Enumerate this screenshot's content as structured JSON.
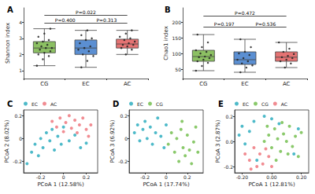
{
  "chart_data": [
    {
      "type": "boxplot",
      "title": "A",
      "y_label": "Shannon index",
      "categories": [
        "CG",
        "EC",
        "AC"
      ],
      "colors": [
        "#8cc063",
        "#5b8fd2",
        "#e57373"
      ],
      "values": [
        [
          1.3,
          2.1,
          2.4,
          2.8,
          3.6
        ],
        [
          1.2,
          2.0,
          2.4,
          2.9,
          3.5
        ],
        [
          2.0,
          2.4,
          2.65,
          2.95,
          3.5
        ]
      ],
      "points": [
        [
          1.3,
          1.7,
          1.9,
          2.0,
          2.1,
          2.2,
          2.3,
          2.4,
          2.4,
          2.5,
          2.6,
          2.7,
          2.8,
          2.9,
          3.1,
          3.3,
          3.6
        ],
        [
          1.2,
          1.6,
          1.9,
          2.0,
          2.2,
          2.3,
          2.4,
          2.5,
          2.7,
          2.9,
          3.0,
          3.2,
          3.5
        ],
        [
          2.0,
          2.3,
          2.4,
          2.5,
          2.6,
          2.6,
          2.7,
          2.8,
          2.9,
          3.0,
          3.1,
          3.3,
          3.5
        ]
      ],
      "annotations": [
        {
          "text": "P=0.022",
          "from": "CG",
          "to": "AC",
          "y": 4.45
        },
        {
          "text": "P=0.400",
          "from": "CG",
          "to": "EC",
          "y": 3.95
        },
        {
          "text": "P=0.313",
          "from": "EC",
          "to": "AC",
          "y": 3.95
        }
      ],
      "ylim": [
        0.5,
        4.9
      ],
      "yticks": [
        1,
        2,
        3,
        4
      ],
      "grid": false
    },
    {
      "type": "boxplot",
      "title": "B",
      "y_label": "Chao1 index",
      "categories": [
        "CG",
        "EC",
        "AC"
      ],
      "colors": [
        "#8cc063",
        "#5b8fd2",
        "#e57373"
      ],
      "values": [
        [
          45,
          75,
          90,
          110,
          160
        ],
        [
          40,
          65,
          80,
          105,
          145
        ],
        [
          55,
          75,
          88,
          105,
          135
        ]
      ],
      "points": [
        [
          45,
          60,
          70,
          75,
          80,
          85,
          88,
          90,
          95,
          100,
          105,
          110,
          120,
          135,
          160
        ],
        [
          40,
          55,
          62,
          68,
          75,
          80,
          85,
          95,
          100,
          105,
          120,
          145
        ],
        [
          55,
          68,
          75,
          80,
          85,
          88,
          92,
          98,
          105,
          115,
          135
        ]
      ],
      "annotations": [
        {
          "text": "P=0.472",
          "from": "CG",
          "to": "AC",
          "y": 220
        },
        {
          "text": "P=0.197",
          "from": "CG",
          "to": "EC",
          "y": 185
        },
        {
          "text": "P=0.536",
          "from": "EC",
          "to": "AC",
          "y": 185
        }
      ],
      "ylim": [
        20,
        245
      ],
      "yticks": [
        50,
        100,
        150,
        200
      ],
      "grid": false
    },
    {
      "type": "scatter",
      "title": "C",
      "x_label": "PCoA 1 (12.58%)",
      "y_label": "PCoA 2 (8.02%)",
      "legend": "top-left",
      "marker": "circle",
      "grid": false,
      "xlim": [
        -0.35,
        0.3
      ],
      "xticks": [
        -0.2,
        0,
        0.2
      ],
      "ylim": [
        -0.3,
        0.25
      ],
      "yticks": [
        -0.2,
        0,
        0.2
      ],
      "series": [
        {
          "name": "EC",
          "color": "#3bb3c3",
          "values": [
            [
              -0.32,
              -0.22
            ],
            [
              -0.28,
              -0.12
            ],
            [
              -0.25,
              -0.05
            ],
            [
              -0.22,
              -0.15
            ],
            [
              -0.2,
              0.0
            ],
            [
              -0.18,
              -0.08
            ],
            [
              -0.15,
              0.05
            ],
            [
              -0.12,
              -0.02
            ],
            [
              -0.1,
              0.08
            ],
            [
              -0.08,
              -0.1
            ],
            [
              -0.05,
              0.02
            ],
            [
              -0.02,
              -0.05
            ],
            [
              0.0,
              0.1
            ],
            [
              0.05,
              -0.02
            ],
            [
              0.1,
              0.03
            ],
            [
              0.15,
              -0.08
            ],
            [
              0.2,
              -0.04
            ]
          ]
        },
        {
          "name": "AC",
          "color": "#f07f86",
          "values": [
            [
              -0.1,
              0.15
            ],
            [
              -0.06,
              0.1
            ],
            [
              -0.03,
              0.18
            ],
            [
              0.0,
              0.06
            ],
            [
              0.02,
              0.14
            ],
            [
              0.05,
              0.2
            ],
            [
              0.07,
              0.09
            ],
            [
              0.1,
              0.16
            ],
            [
              0.12,
              0.05
            ],
            [
              0.14,
              0.12
            ],
            [
              0.17,
              0.18
            ],
            [
              0.2,
              0.08
            ],
            [
              0.22,
              0.02
            ],
            [
              0.24,
              0.12
            ]
          ]
        }
      ]
    },
    {
      "type": "scatter",
      "title": "D",
      "x_label": "PCoA 1 (17.74%)",
      "y_label": "PCoA 3 (6.92%)",
      "legend": "top-left",
      "marker": "circle",
      "grid": false,
      "xlim": [
        -0.35,
        0.35
      ],
      "xticks": [
        -0.2,
        0,
        0.2
      ],
      "ylim": [
        -0.3,
        0.25
      ],
      "yticks": [
        -0.2,
        0,
        0.2
      ],
      "series": [
        {
          "name": "EC",
          "color": "#3bb3c3",
          "values": [
            [
              -0.3,
              0.05
            ],
            [
              -0.27,
              0.12
            ],
            [
              -0.25,
              -0.02
            ],
            [
              -0.22,
              0.08
            ],
            [
              -0.2,
              0.15
            ],
            [
              -0.18,
              0.0
            ],
            [
              -0.15,
              0.1
            ],
            [
              -0.13,
              -0.05
            ],
            [
              -0.1,
              0.05
            ],
            [
              -0.08,
              0.18
            ],
            [
              -0.05,
              0.02
            ],
            [
              -0.02,
              -0.08
            ],
            [
              0.0,
              0.12
            ]
          ]
        },
        {
          "name": "CG",
          "color": "#7dc35b",
          "values": [
            [
              0.02,
              -0.05
            ],
            [
              0.05,
              0.05
            ],
            [
              0.08,
              -0.12
            ],
            [
              0.1,
              0.0
            ],
            [
              0.12,
              -0.2
            ],
            [
              0.14,
              0.08
            ],
            [
              0.16,
              -0.08
            ],
            [
              0.18,
              -0.15
            ],
            [
              0.2,
              0.03
            ],
            [
              0.22,
              -0.1
            ],
            [
              0.24,
              -0.22
            ],
            [
              0.26,
              -0.03
            ],
            [
              0.28,
              0.1
            ],
            [
              0.3,
              -0.12
            ],
            [
              0.15,
              0.15
            ]
          ]
        }
      ]
    },
    {
      "type": "scatter",
      "title": "E",
      "x_label": "PCoA 1 (12.81%)",
      "y_label": "PCoA 3 (2.87%)",
      "legend": "top-left",
      "marker": "circle",
      "grid": false,
      "xlim": [
        -0.25,
        0.25
      ],
      "xticks": [
        {
          "value": -0.2,
          "label": "-0.20"
        },
        {
          "value": 0,
          "label": "0.00"
        },
        {
          "value": 0.2,
          "label": "0.20"
        }
      ],
      "ylim": [
        -0.25,
        0.25
      ],
      "yticks": [
        -0.2,
        {
          "value": 0,
          "label": "0.0"
        },
        0.2
      ],
      "series": [
        {
          "name": "EC",
          "color": "#3bb3c3",
          "values": [
            [
              -0.22,
              0.05
            ],
            [
              -0.2,
              0.12
            ],
            [
              -0.18,
              -0.02
            ],
            [
              -0.15,
              0.08
            ],
            [
              -0.12,
              0.16
            ],
            [
              -0.05,
              0.2
            ],
            [
              0.0,
              0.18
            ],
            [
              0.05,
              0.14
            ],
            [
              0.15,
              -0.1
            ],
            [
              0.18,
              0.1
            ],
            [
              -0.1,
              -0.15
            ]
          ]
        },
        {
          "name": "CG",
          "color": "#7dc35b",
          "values": [
            [
              -0.05,
              0.0
            ],
            [
              -0.02,
              0.05
            ],
            [
              0.0,
              -0.05
            ],
            [
              0.02,
              0.1
            ],
            [
              0.04,
              0.02
            ],
            [
              0.06,
              -0.08
            ],
            [
              0.08,
              0.06
            ],
            [
              0.1,
              0.0
            ],
            [
              0.12,
              0.12
            ],
            [
              0.14,
              -0.04
            ],
            [
              0.16,
              0.04
            ],
            [
              0.18,
              -0.12
            ],
            [
              0.03,
              -0.15
            ],
            [
              0.07,
              0.15
            ],
            [
              0.11,
              -0.1
            ],
            [
              -0.03,
              0.12
            ],
            [
              0.2,
              0.07
            ]
          ]
        },
        {
          "name": "AC",
          "color": "#f07f86",
          "values": [
            [
              -0.18,
              -0.1
            ],
            [
              -0.15,
              -0.15
            ],
            [
              -0.12,
              -0.05
            ],
            [
              -0.1,
              -0.2
            ],
            [
              -0.08,
              -0.1
            ],
            [
              -0.06,
              -0.18
            ],
            [
              -0.04,
              -0.06
            ],
            [
              -0.02,
              -0.12
            ],
            [
              0.0,
              -0.2
            ],
            [
              -0.14,
              -0.22
            ]
          ]
        }
      ]
    }
  ]
}
